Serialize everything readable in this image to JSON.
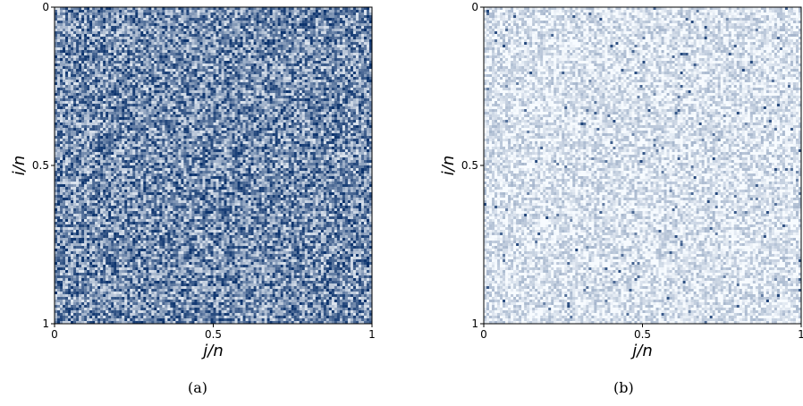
{
  "chart_data": [
    {
      "type": "heatmap",
      "caption": "(a)",
      "xlabel": "j/n",
      "ylabel": "i/n",
      "xlim": [
        0,
        1
      ],
      "ylim": [
        0,
        1
      ],
      "y_inverted": true,
      "x_ticks": [
        "0",
        "0.5",
        "1"
      ],
      "y_ticks": [
        "0",
        "0.5",
        "1"
      ],
      "colormap": "Blues",
      "colors": {
        "light": "#f7fbff",
        "dark": "#08306b",
        "mid": "#4a90c4"
      },
      "mean_intensity": 0.55,
      "intensity_spread": 0.45
    },
    {
      "type": "heatmap",
      "caption": "(b)",
      "xlabel": "j/n",
      "ylabel": "i/n",
      "xlim": [
        0,
        1
      ],
      "ylim": [
        0,
        1
      ],
      "y_inverted": true,
      "x_ticks": [
        "0",
        "0.5",
        "1"
      ],
      "y_ticks": [
        "0",
        "0.5",
        "1"
      ],
      "colormap": "Blues",
      "colors": {
        "light": "#f7fbff",
        "dark": "#08306b",
        "mid": "#a9cce3"
      },
      "mean_intensity": 0.12,
      "intensity_spread": 0.22
    }
  ]
}
